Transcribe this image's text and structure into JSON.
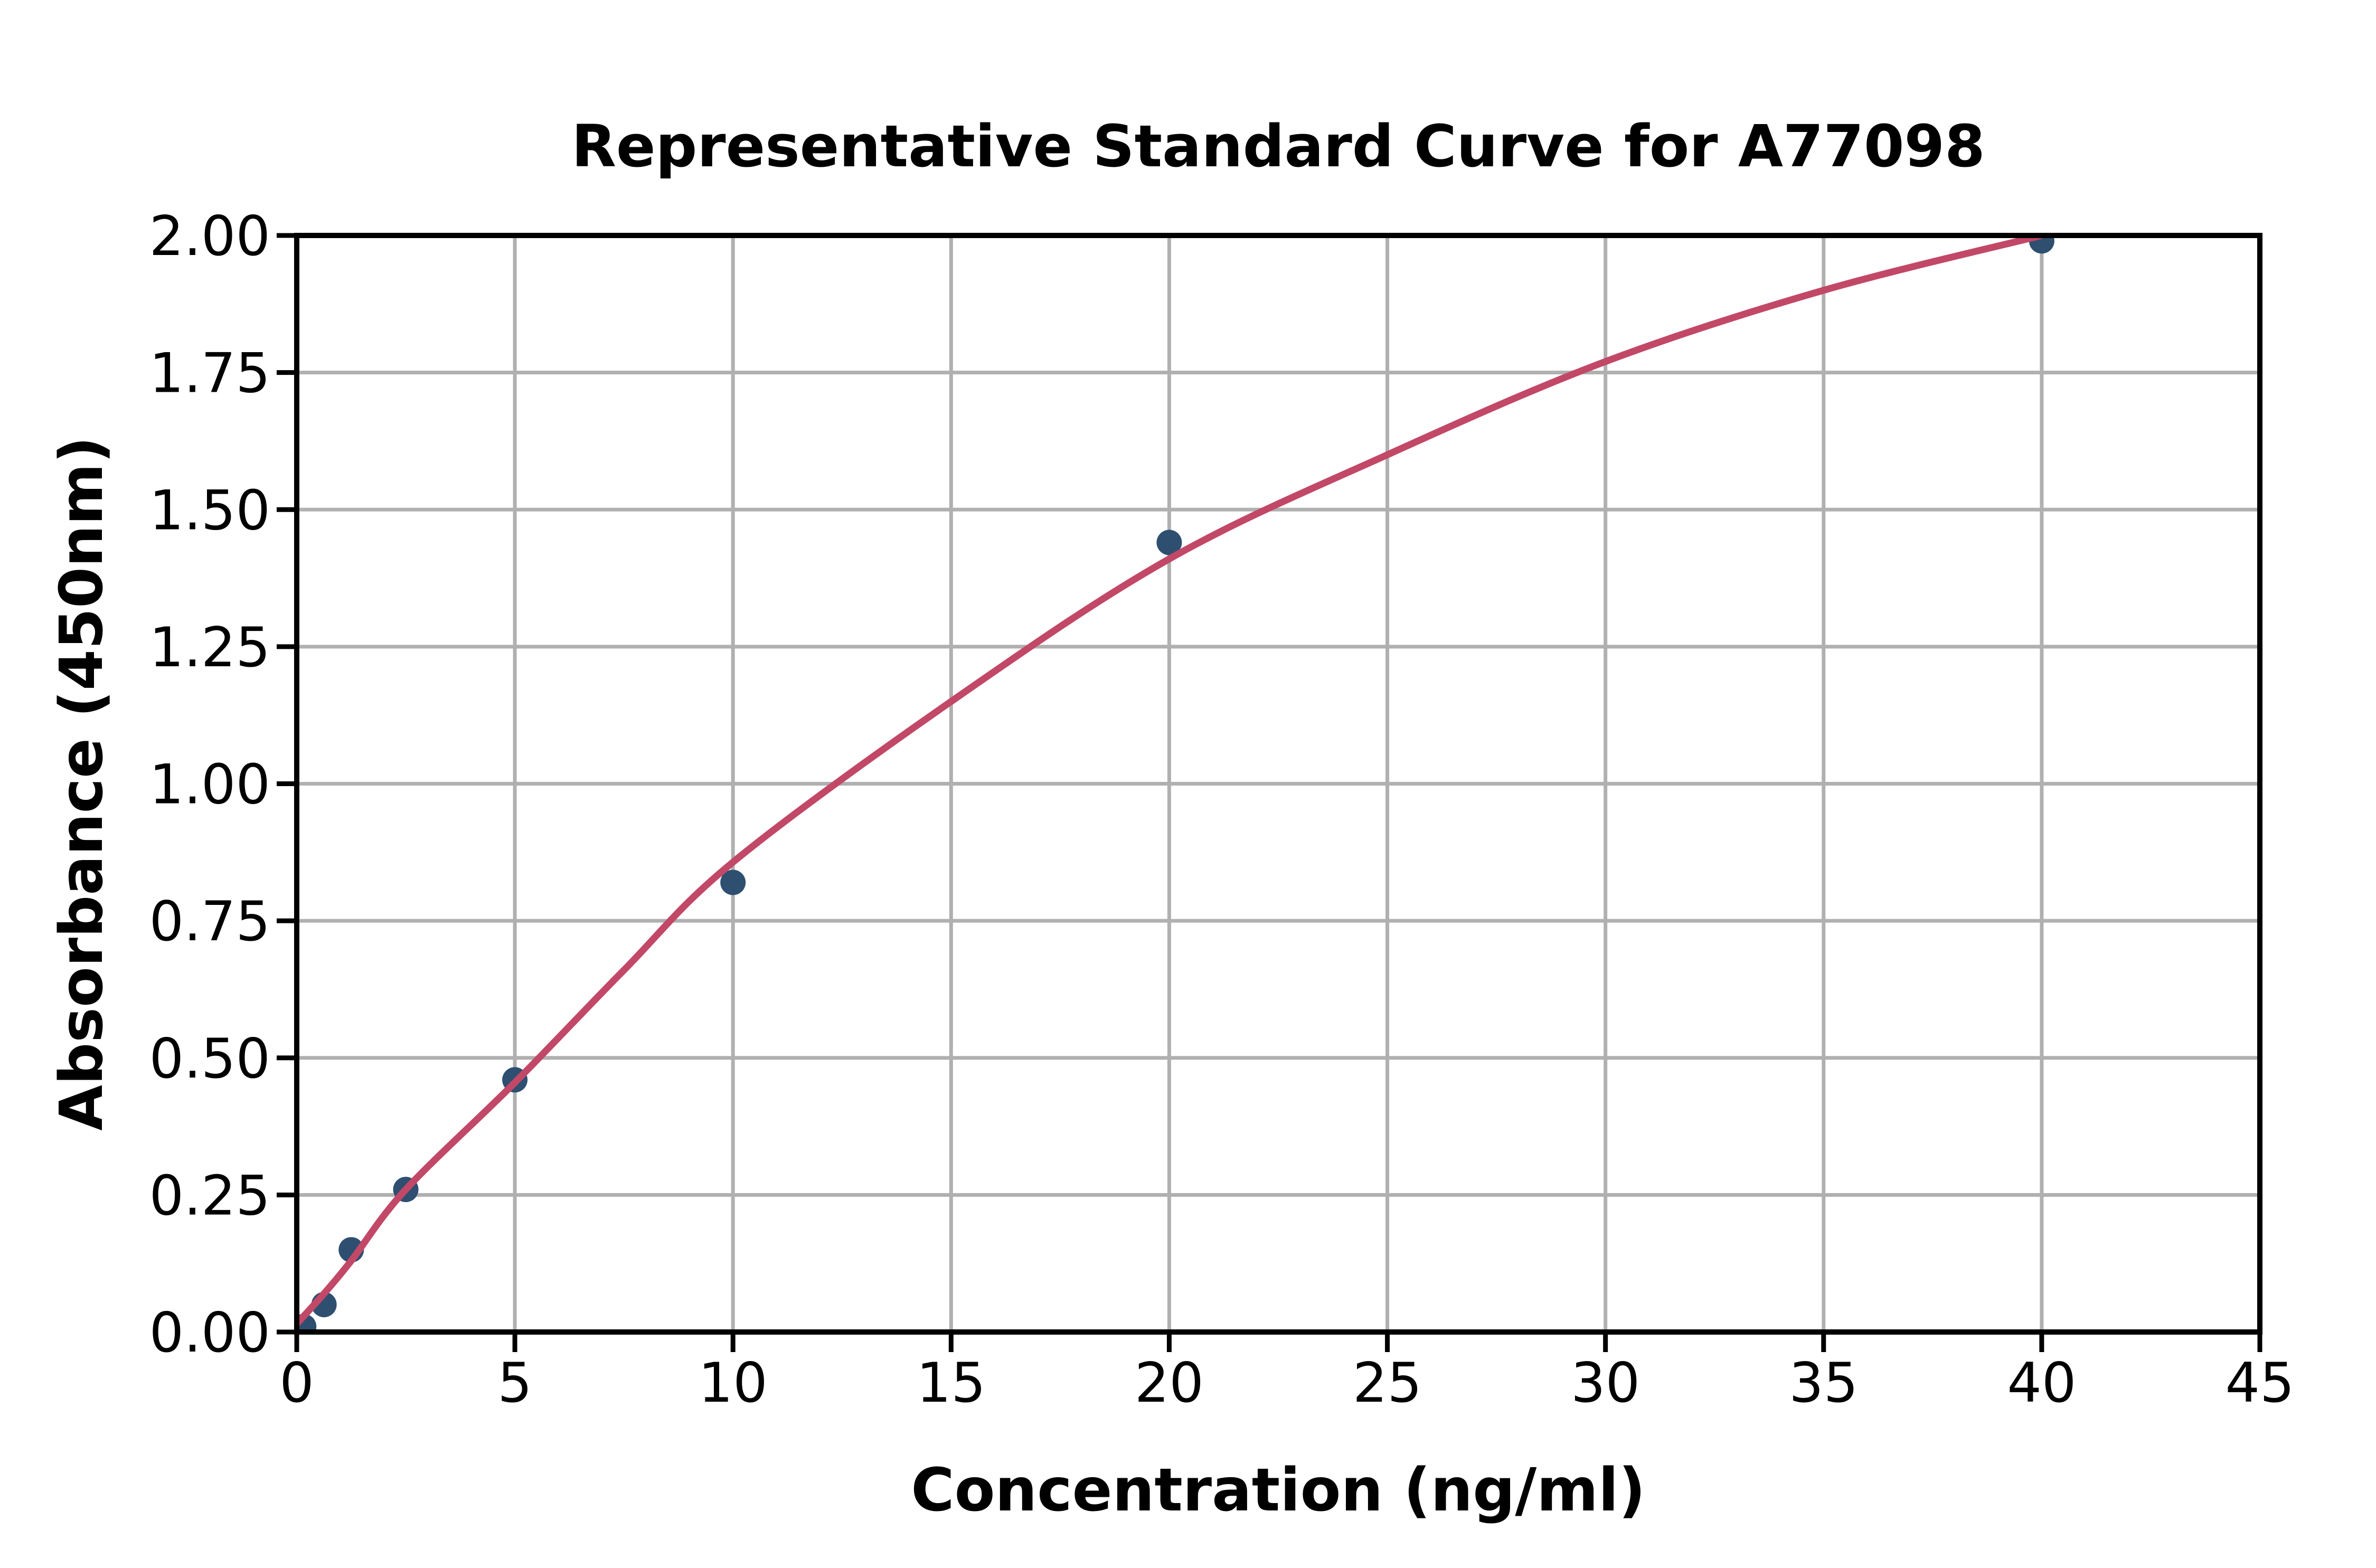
{
  "title": "Representative Standard Curve for A77098",
  "chart_data": {
    "type": "scatter",
    "title": "Representative Standard Curve for A77098",
    "xlabel": "Concentration (ng/ml)",
    "ylabel": "Absorbance (450nm)",
    "xlim": [
      0,
      45
    ],
    "ylim": [
      0,
      2.0
    ],
    "grid": true,
    "grid_color": "#b0b0b0",
    "spine_color": "#000000",
    "tick_color": "#000000",
    "x_ticks": [
      0,
      5,
      10,
      15,
      20,
      25,
      30,
      35,
      40,
      45
    ],
    "x_tick_labels": [
      "0",
      "5",
      "10",
      "15",
      "20",
      "25",
      "30",
      "35",
      "40",
      "45"
    ],
    "y_ticks": [
      0.0,
      0.25,
      0.5,
      0.75,
      1.0,
      1.25,
      1.5,
      1.75,
      2.0
    ],
    "y_tick_labels": [
      "0.00",
      "0.25",
      "0.50",
      "0.75",
      "1.00",
      "1.25",
      "1.50",
      "1.75",
      "2.00"
    ],
    "series": [
      {
        "name": "standard-points",
        "type": "scatter",
        "color": "#2E4F70",
        "marker_radius": 24,
        "points": [
          [
            0.16,
            0.01
          ],
          [
            0.625,
            0.05
          ],
          [
            1.25,
            0.15
          ],
          [
            2.5,
            0.26
          ],
          [
            5,
            0.46
          ],
          [
            10,
            0.82
          ],
          [
            20,
            1.44
          ],
          [
            40,
            1.99
          ]
        ]
      },
      {
        "name": "fitted-curve",
        "type": "line",
        "color": "#C24868",
        "line_width": 13,
        "points": [
          [
            0,
            0.015
          ],
          [
            0.625,
            0.07
          ],
          [
            1.25,
            0.13
          ],
          [
            2.5,
            0.26
          ],
          [
            5,
            0.455
          ],
          [
            7.5,
            0.66
          ],
          [
            10,
            0.857
          ],
          [
            15,
            1.15
          ],
          [
            20,
            1.41
          ],
          [
            25,
            1.6
          ],
          [
            30,
            1.77
          ],
          [
            35,
            1.9
          ],
          [
            40,
            2.0
          ]
        ]
      }
    ]
  }
}
